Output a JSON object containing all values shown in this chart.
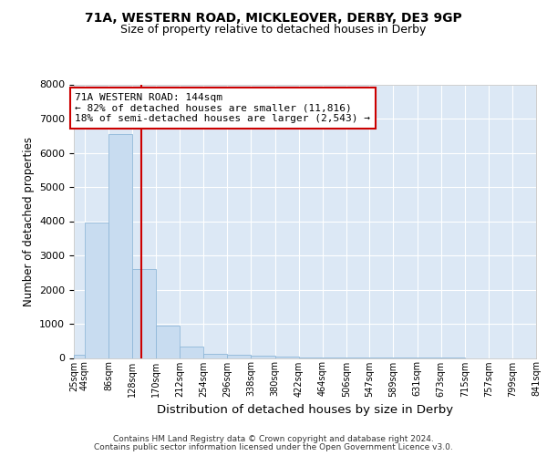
{
  "title1": "71A, WESTERN ROAD, MICKLEOVER, DERBY, DE3 9GP",
  "title2": "Size of property relative to detached houses in Derby",
  "xlabel": "Distribution of detached houses by size in Derby",
  "ylabel": "Number of detached properties",
  "bar_values": [
    100,
    3950,
    6550,
    2600,
    950,
    330,
    130,
    100,
    70,
    50,
    20,
    10,
    5,
    3,
    2,
    1,
    1,
    0,
    0,
    0
  ],
  "bin_edges": [
    25,
    44,
    86,
    128,
    170,
    212,
    254,
    296,
    338,
    380,
    422,
    464,
    506,
    547,
    589,
    631,
    673,
    715,
    757,
    799,
    841
  ],
  "tick_labels": [
    "25sqm",
    "44sqm",
    "86sqm",
    "128sqm",
    "170sqm",
    "212sqm",
    "254sqm",
    "296sqm",
    "338sqm",
    "380sqm",
    "422sqm",
    "464sqm",
    "506sqm",
    "547sqm",
    "589sqm",
    "631sqm",
    "673sqm",
    "715sqm",
    "757sqm",
    "799sqm",
    "841sqm"
  ],
  "bar_color": "#c8dcf0",
  "bar_edgecolor": "#90b8d8",
  "vline_x": 144,
  "vline_color": "#cc0000",
  "annotation_line1": "71A WESTERN ROAD: 144sqm",
  "annotation_line2": "← 82% of detached houses are smaller (11,816)",
  "annotation_line3": "18% of semi-detached houses are larger (2,543) →",
  "annotation_box_edgecolor": "#cc0000",
  "ylim": [
    0,
    8000
  ],
  "yticks": [
    0,
    1000,
    2000,
    3000,
    4000,
    5000,
    6000,
    7000,
    8000
  ],
  "bg_color": "#dce8f5",
  "grid_color": "#ffffff",
  "fig_bg_color": "#ffffff",
  "footer1": "Contains HM Land Registry data © Crown copyright and database right 2024.",
  "footer2": "Contains public sector information licensed under the Open Government Licence v3.0."
}
